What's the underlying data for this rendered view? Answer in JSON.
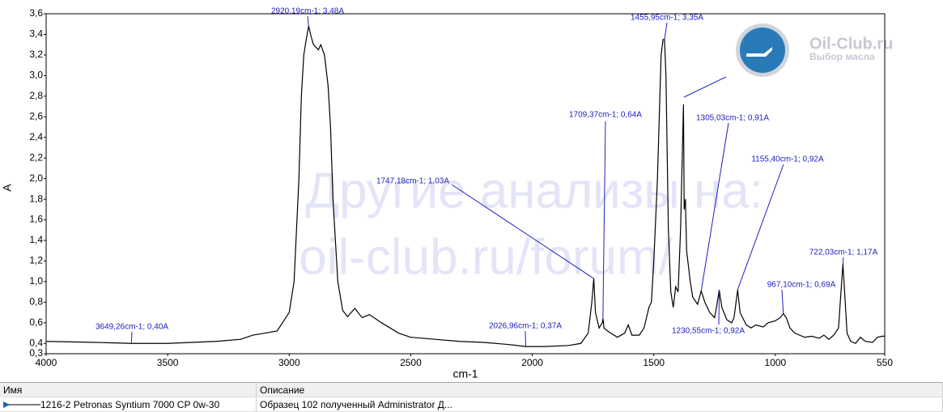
{
  "chart_data": {
    "type": "line",
    "xlabel": "cm-1",
    "ylabel": "A",
    "xlim": [
      4000,
      550
    ],
    "ylim": [
      0.3,
      3.6
    ],
    "xticks": [
      4000,
      3500,
      3000,
      2500,
      2000,
      1500,
      1000,
      550
    ],
    "yticks": [
      {
        "value": 0.3,
        "label": "0,3"
      },
      {
        "value": 0.4,
        "label": "0,4"
      },
      {
        "value": 0.6,
        "label": "0,6"
      },
      {
        "value": 0.8,
        "label": "0,8"
      },
      {
        "value": 1.0,
        "label": "1,0"
      },
      {
        "value": 1.2,
        "label": "1,2"
      },
      {
        "value": 1.4,
        "label": "1,4"
      },
      {
        "value": 1.6,
        "label": "1,6"
      },
      {
        "value": 1.8,
        "label": "1,8"
      },
      {
        "value": 2.0,
        "label": "2,0"
      },
      {
        "value": 2.2,
        "label": "2,2"
      },
      {
        "value": 2.4,
        "label": "2,4"
      },
      {
        "value": 2.6,
        "label": "2,6"
      },
      {
        "value": 2.8,
        "label": "2,8"
      },
      {
        "value": 3.0,
        "label": "3,0"
      },
      {
        "value": 3.2,
        "label": "3,2"
      },
      {
        "value": 3.4,
        "label": "3,4"
      },
      {
        "value": 3.6,
        "label": "3,6"
      }
    ],
    "series": [
      {
        "name": "1216-2 Petronas Syntium 7000 CP 0w-30",
        "color": "#000000",
        "x": [
          4000,
          3800,
          3649,
          3500,
          3400,
          3300,
          3200,
          3150,
          3100,
          3050,
          3000,
          2980,
          2960,
          2950,
          2940,
          2930,
          2920,
          2910,
          2900,
          2880,
          2870,
          2855,
          2840,
          2830,
          2820,
          2800,
          2780,
          2760,
          2730,
          2700,
          2670,
          2620,
          2550,
          2500,
          2400,
          2300,
          2200,
          2100,
          2027,
          1950,
          1850,
          1800,
          1770,
          1755,
          1747,
          1740,
          1725,
          1712,
          1709,
          1705,
          1690,
          1650,
          1620,
          1605,
          1590,
          1560,
          1540,
          1520,
          1510,
          1500,
          1485,
          1470,
          1462,
          1456,
          1450,
          1440,
          1430,
          1420,
          1410,
          1400,
          1390,
          1378,
          1375,
          1370,
          1365,
          1350,
          1340,
          1320,
          1305,
          1290,
          1270,
          1250,
          1240,
          1231,
          1220,
          1200,
          1180,
          1170,
          1155,
          1145,
          1120,
          1100,
          1080,
          1050,
          1030,
          1000,
          980,
          967,
          955,
          940,
          920,
          880,
          850,
          820,
          800,
          780,
          760,
          740,
          730,
          722,
          715,
          705,
          690,
          670,
          650,
          630,
          600,
          580,
          560,
          550
        ],
        "values": [
          0.42,
          0.41,
          0.4,
          0.4,
          0.41,
          0.42,
          0.44,
          0.48,
          0.5,
          0.52,
          0.7,
          1.0,
          2.0,
          2.8,
          3.2,
          3.35,
          3.48,
          3.38,
          3.3,
          3.25,
          3.3,
          3.2,
          2.9,
          2.5,
          1.8,
          1.0,
          0.72,
          0.66,
          0.74,
          0.65,
          0.68,
          0.6,
          0.5,
          0.46,
          0.44,
          0.42,
          0.41,
          0.39,
          0.37,
          0.37,
          0.38,
          0.4,
          0.5,
          0.8,
          1.03,
          0.7,
          0.55,
          0.6,
          0.64,
          0.55,
          0.52,
          0.46,
          0.5,
          0.58,
          0.48,
          0.48,
          0.55,
          0.75,
          0.8,
          1.2,
          2.0,
          3.2,
          3.35,
          3.35,
          3.0,
          1.5,
          0.9,
          0.75,
          0.95,
          0.9,
          1.5,
          2.72,
          1.7,
          1.8,
          1.3,
          1.0,
          0.85,
          0.78,
          0.91,
          0.8,
          0.7,
          0.65,
          0.78,
          0.92,
          0.75,
          0.63,
          0.6,
          0.65,
          0.92,
          0.7,
          0.58,
          0.55,
          0.58,
          0.56,
          0.6,
          0.62,
          0.65,
          0.69,
          0.65,
          0.55,
          0.5,
          0.46,
          0.47,
          0.45,
          0.48,
          0.44,
          0.48,
          0.55,
          0.9,
          1.17,
          0.9,
          0.5,
          0.42,
          0.4,
          0.46,
          0.42,
          0.41,
          0.46,
          0.47,
          0.47
        ]
      }
    ],
    "annotations": [
      {
        "text": "2920,19cm-1; 3,48A",
        "x": 2920.19,
        "y": 3.48
      },
      {
        "text": "3649,26cm-1; 0,40A",
        "x": 3649.26,
        "y": 0.4
      },
      {
        "text": "2026,96cm-1; 0,37A",
        "x": 2026.96,
        "y": 0.37
      },
      {
        "text": "1747,18cm-1; 1,03A",
        "x": 1747.18,
        "y": 1.03
      },
      {
        "text": "1709,37cm-1; 0,64A",
        "x": 1709.37,
        "y": 0.64
      },
      {
        "text": "1455,95cm-1; 3,35A",
        "x": 1455.95,
        "y": 3.35
      },
      {
        "text": "1305,03cm-1; 0,91A",
        "x": 1305.03,
        "y": 0.91
      },
      {
        "text": "1155,40cm-1; 0,92A",
        "x": 1155.4,
        "y": 0.92
      },
      {
        "text": "1230,55cm-1; 0,92A",
        "x": 1230.55,
        "y": 0.92
      },
      {
        "text": "967,10cm-1; 0,69A",
        "x": 967.1,
        "y": 0.69
      },
      {
        "text": "722,03cm-1; 1,17A",
        "x": 722.03,
        "y": 1.17
      }
    ]
  },
  "watermark": [
    "Другие анализы на:",
    "oil-club.ru/forum/"
  ],
  "logo": {
    "name": "Oil-Club.ru",
    "tagline": "Выбор масла"
  },
  "table": {
    "headers": [
      "Имя",
      "Описание"
    ],
    "description": "Образец 102 полученный Administrator Д..."
  }
}
